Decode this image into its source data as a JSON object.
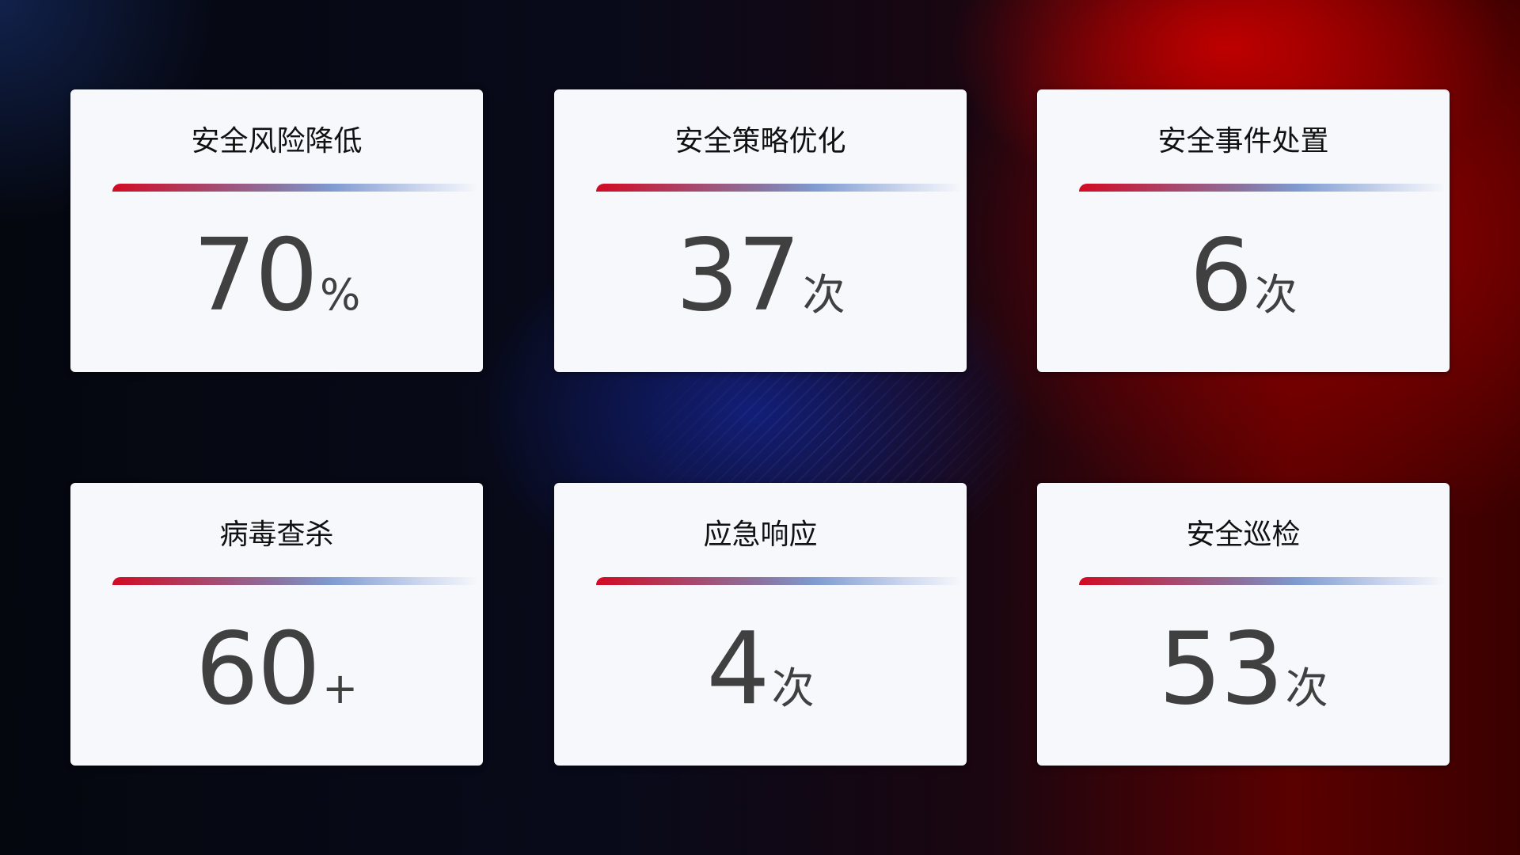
{
  "cards": [
    {
      "title": "安全风险降低",
      "value": "70",
      "unit": "%"
    },
    {
      "title": "安全策略优化",
      "value": "37",
      "unit": "次"
    },
    {
      "title": "安全事件处置",
      "value": "6",
      "unit": "次"
    },
    {
      "title": "病毒查杀",
      "value": "60",
      "unit": "+"
    },
    {
      "title": "应急响应",
      "value": "4",
      "unit": "次"
    },
    {
      "title": "安全巡检",
      "value": "53",
      "unit": "次"
    }
  ],
  "colors": {
    "accent_red": "#d20a23",
    "accent_blue": "#7f9bd0",
    "card_bg": "#f6f8fb",
    "value_text": "#404040"
  }
}
